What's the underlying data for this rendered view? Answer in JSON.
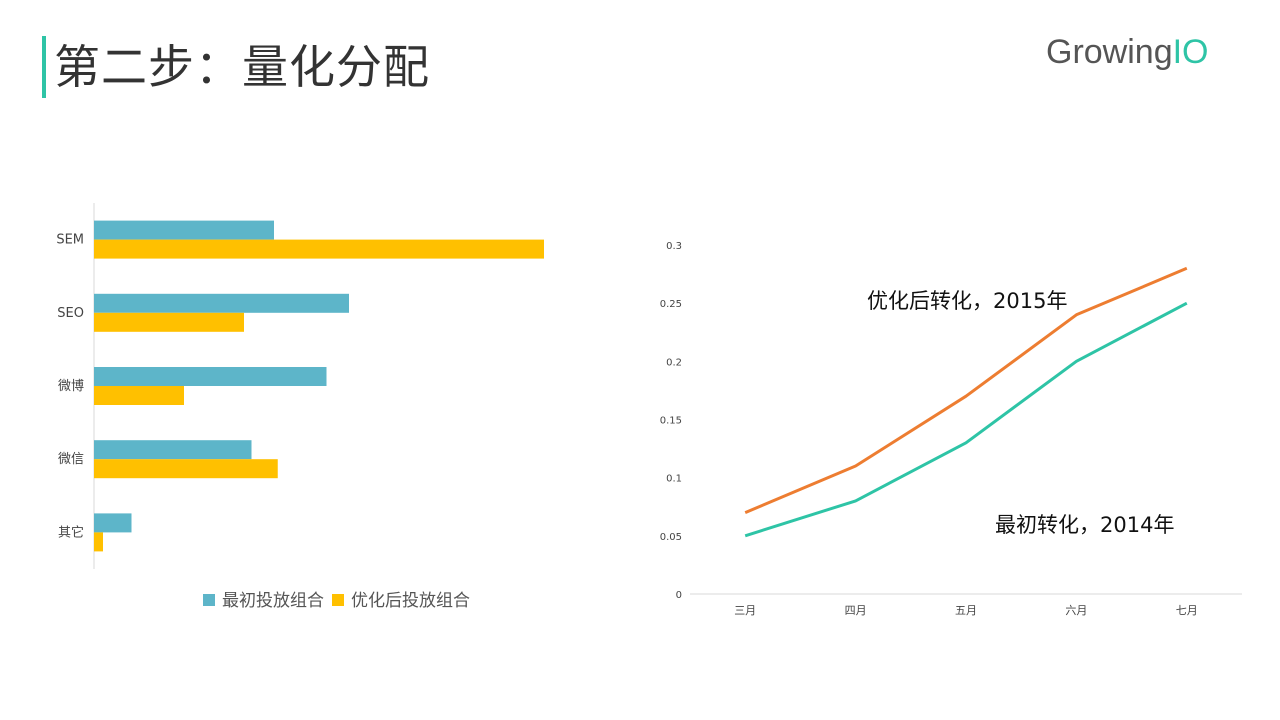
{
  "header": {
    "title": "第二步：量化分配",
    "logo_main": "Growing",
    "logo_accent": "IO"
  },
  "colors": {
    "accent": "#2ec4a6",
    "bar_initial": "#5db5c9",
    "bar_optimized": "#ffc000",
    "line_2015": "#ed7d31",
    "line_2014": "#2ec4a6"
  },
  "chart_data": [
    {
      "type": "bar",
      "orientation": "horizontal",
      "categories": [
        "SEM",
        "SEO",
        "微博",
        "微信",
        "其它"
      ],
      "series": [
        {
          "name": "最初投放组合",
          "values": [
            0.24,
            0.34,
            0.31,
            0.21,
            0.05
          ]
        },
        {
          "name": "优化后投放组合",
          "values": [
            0.6,
            0.2,
            0.12,
            0.245,
            0.012
          ]
        }
      ],
      "xlim": [
        0,
        1
      ],
      "legend": "bottom",
      "grid": false
    },
    {
      "type": "line",
      "categories": [
        "三月",
        "四月",
        "五月",
        "六月",
        "七月"
      ],
      "yticks": [
        "0",
        "0.05",
        "0.1",
        "0.15",
        "0.2",
        "0.25",
        "0.3"
      ],
      "ylim": [
        0,
        0.3
      ],
      "series": [
        {
          "values": [
            0.07,
            0.11,
            0.17,
            0.24,
            0.28
          ]
        },
        {
          "values": [
            0.05,
            0.08,
            0.13,
            0.2,
            0.25
          ]
        }
      ],
      "annotations": [
        "优化后转化，2015年",
        "最初转化，2014年"
      ],
      "grid": false
    }
  ]
}
